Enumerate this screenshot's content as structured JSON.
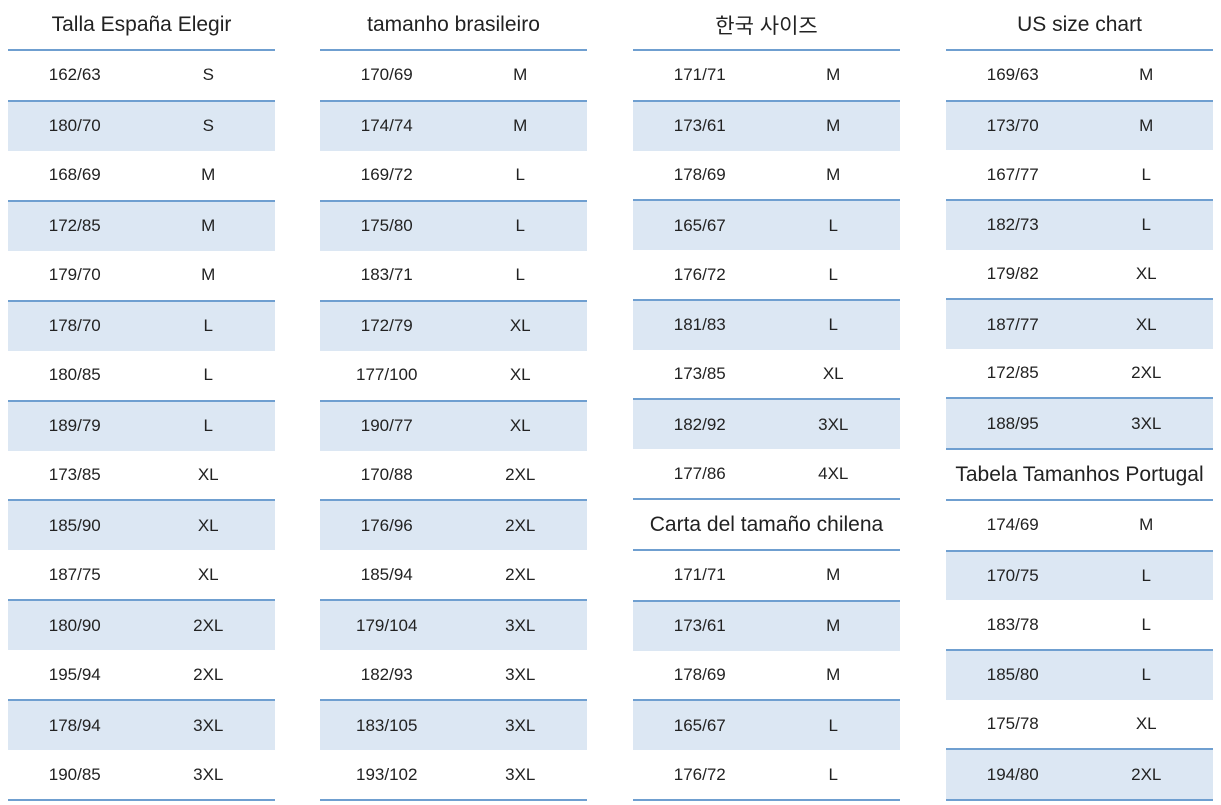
{
  "columns": [
    {
      "sections": [
        {
          "title": "Talla España Elegir",
          "rows": [
            [
              "162/63",
              "S"
            ],
            [
              "180/70",
              "S"
            ],
            [
              "168/69",
              "M"
            ],
            [
              "172/85",
              "M"
            ],
            [
              "179/70",
              "M"
            ],
            [
              "178/70",
              "L"
            ],
            [
              "180/85",
              "L"
            ],
            [
              "189/79",
              "L"
            ],
            [
              "173/85",
              "XL"
            ],
            [
              "185/90",
              "XL"
            ],
            [
              "187/75",
              "XL"
            ],
            [
              "180/90",
              "2XL"
            ],
            [
              "195/94",
              "2XL"
            ],
            [
              "178/94",
              "3XL"
            ],
            [
              "190/85",
              "3XL"
            ]
          ]
        }
      ]
    },
    {
      "sections": [
        {
          "title": "tamanho brasileiro",
          "rows": [
            [
              "170/69",
              "M"
            ],
            [
              "174/74",
              "M"
            ],
            [
              "169/72",
              "L"
            ],
            [
              "175/80",
              "L"
            ],
            [
              "183/71",
              "L"
            ],
            [
              "172/79",
              "XL"
            ],
            [
              "177/100",
              "XL"
            ],
            [
              "190/77",
              "XL"
            ],
            [
              "170/88",
              "2XL"
            ],
            [
              "176/96",
              "2XL"
            ],
            [
              "185/94",
              "2XL"
            ],
            [
              "179/104",
              "3XL"
            ],
            [
              "182/93",
              "3XL"
            ],
            [
              "183/105",
              "3XL"
            ],
            [
              "193/102",
              "3XL"
            ]
          ]
        }
      ]
    },
    {
      "sections": [
        {
          "title": "한국 사이즈",
          "rows": [
            [
              "171/71",
              "M"
            ],
            [
              "173/61",
              "M"
            ],
            [
              "178/69",
              "M"
            ],
            [
              "165/67",
              "L"
            ],
            [
              "176/72",
              "L"
            ],
            [
              "181/83",
              "L"
            ],
            [
              "173/85",
              "XL"
            ],
            [
              "182/92",
              "3XL"
            ],
            [
              "177/86",
              "4XL"
            ]
          ]
        },
        {
          "title": "Carta del tamaño chilena",
          "rows": [
            [
              "171/71",
              "M"
            ],
            [
              "173/61",
              "M"
            ],
            [
              "178/69",
              "M"
            ],
            [
              "165/67",
              "L"
            ],
            [
              "176/72",
              "L"
            ]
          ]
        }
      ]
    },
    {
      "sections": [
        {
          "title": "US size chart",
          "rows": [
            [
              "169/63",
              "M"
            ],
            [
              "173/70",
              "M"
            ],
            [
              "167/77",
              "L"
            ],
            [
              "182/73",
              "L"
            ],
            [
              "179/82",
              "XL"
            ],
            [
              "187/77",
              "XL"
            ],
            [
              "172/85",
              "2XL"
            ],
            [
              "188/95",
              "3XL"
            ]
          ]
        },
        {
          "title": "Tabela Tamanhos Portugal",
          "rows": [
            [
              "174/69",
              "M"
            ],
            [
              "170/75",
              "L"
            ],
            [
              "183/78",
              "L"
            ],
            [
              "185/80",
              "L"
            ],
            [
              "175/78",
              "XL"
            ],
            [
              "194/80",
              "2XL"
            ]
          ]
        }
      ]
    }
  ]
}
